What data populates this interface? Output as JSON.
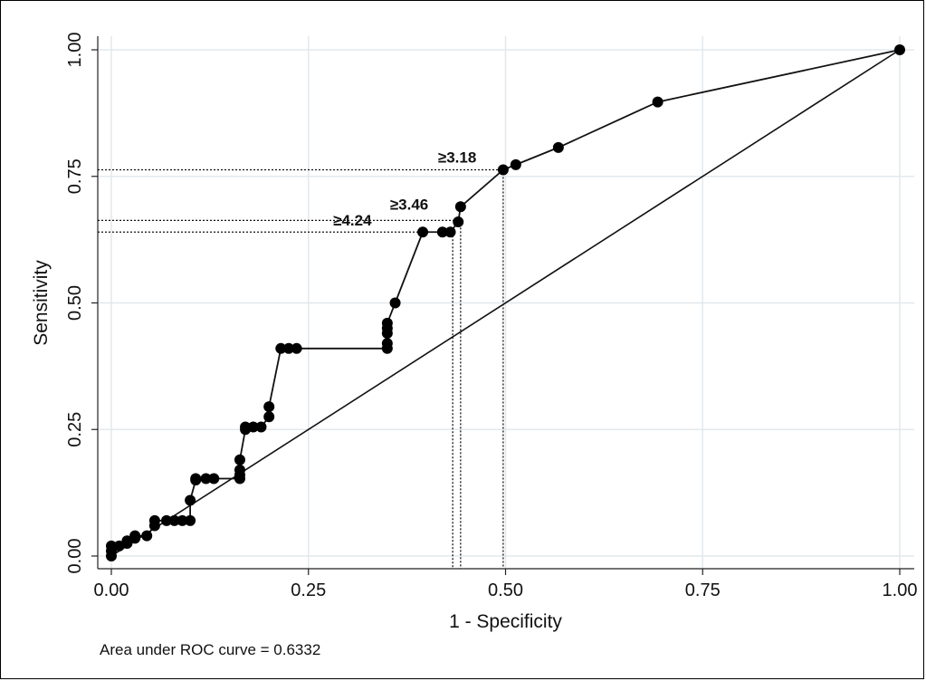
{
  "chart_data": {
    "type": "line",
    "xlabel": "1 - Specificity",
    "ylabel": "Sensitivity",
    "xlim": [
      0,
      1
    ],
    "ylim": [
      0,
      1
    ],
    "x_ticks": [
      "0.00",
      "0.25",
      "0.50",
      "0.75",
      "1.00"
    ],
    "y_ticks": [
      "0.00",
      "0.25",
      "0.50",
      "0.75",
      "1.00"
    ],
    "grid": true,
    "series": [
      {
        "type": "line+markers",
        "x": [
          0,
          0,
          0,
          0.01,
          0.02,
          0.02,
          0.03,
          0.03,
          0.045,
          0.055,
          0.055,
          0.07,
          0.08,
          0.09,
          0.1,
          0.1,
          0.107,
          0.107,
          0.12,
          0.13,
          0.163,
          0.163,
          0.163,
          0.163,
          0.17,
          0.17,
          0.18,
          0.19,
          0.2,
          0.2,
          0.215,
          0.225,
          0.235,
          0.35,
          0.35,
          0.35,
          0.35,
          0.35,
          0.36,
          0.395,
          0.42,
          0.43,
          0.44,
          0.443,
          0.497,
          0.513,
          0.567,
          0.693,
          1
        ],
        "y": [
          0,
          0.01,
          0.02,
          0.02,
          0.025,
          0.03,
          0.035,
          0.04,
          0.04,
          0.06,
          0.07,
          0.07,
          0.07,
          0.07,
          0.07,
          0.11,
          0.15,
          0.153,
          0.153,
          0.153,
          0.153,
          0.16,
          0.17,
          0.19,
          0.25,
          0.255,
          0.255,
          0.255,
          0.275,
          0.295,
          0.41,
          0.41,
          0.41,
          0.41,
          0.42,
          0.44,
          0.45,
          0.46,
          0.5,
          0.64,
          0.64,
          0.64,
          0.66,
          0.69,
          0.763,
          0.773,
          0.807,
          0.897,
          1
        ]
      },
      {
        "type": "reference-line",
        "x": [
          0,
          1
        ],
        "y": [
          0,
          1
        ]
      }
    ],
    "annotations": [
      {
        "text": "≥3.18",
        "x": 0.497,
        "y": 0.763
      },
      {
        "text": "≥3.46",
        "x": 0.443,
        "y": 0.663
      },
      {
        "text": "≥4.24",
        "x": 0.433,
        "y": 0.64
      }
    ],
    "cutoff_lines": [
      {
        "x": 0.497,
        "y": 0.763
      },
      {
        "x": 0.443,
        "y": 0.663
      },
      {
        "x": 0.433,
        "y": 0.64
      }
    ]
  },
  "note": "Area under ROC curve = 0.6332"
}
